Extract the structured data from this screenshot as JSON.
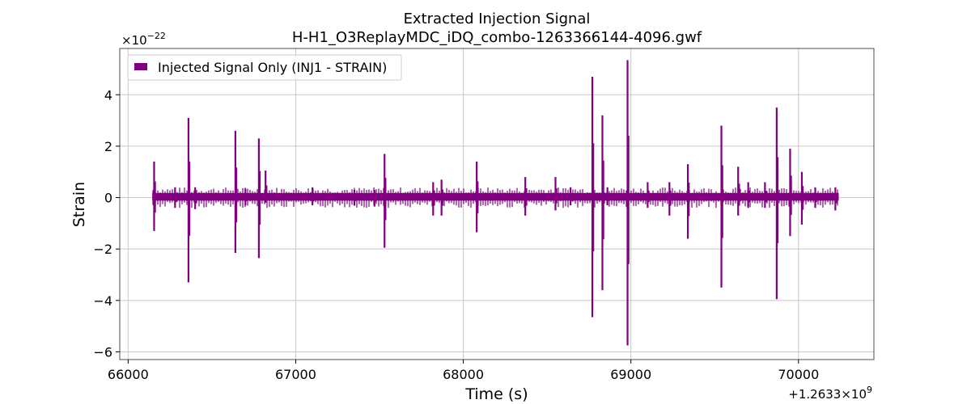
{
  "chart_data": {
    "type": "line",
    "title": "Extracted Injection Signal",
    "subtitle": "H-H1_O3ReplayMDC_iDQ_combo-1263366144-4096.gwf",
    "xlabel": "Time (s)",
    "ylabel": "Strain",
    "x_offset_label": "+1.2633×10",
    "x_offset_exponent": "9",
    "y_scale_label": "×10",
    "y_scale_exponent": "−22",
    "xlim": [
      65950,
      70450
    ],
    "ylim": [
      -6.3,
      5.8
    ],
    "x_ticks": [
      66000,
      67000,
      68000,
      69000,
      70000
    ],
    "x_tick_labels": [
      "66000",
      "67000",
      "68000",
      "69000",
      "70000"
    ],
    "y_ticks": [
      -6,
      -4,
      -2,
      0,
      2,
      4
    ],
    "y_tick_labels": [
      "−6",
      "−4",
      "−2",
      "0",
      "2",
      "4"
    ],
    "grid": true,
    "legend_position": "top-left",
    "series": [
      {
        "name": "Injected Signal Only (INJ1 - STRAIN)",
        "color": "#800080",
        "x_start": 66144,
        "x_end": 70240,
        "baseline_band": [
          -0.12,
          0.18
        ],
        "spikes": [
          {
            "x": 66155,
            "max": 1.4,
            "min": -1.3
          },
          {
            "x": 66280,
            "max": 0.4,
            "min": -0.4
          },
          {
            "x": 66360,
            "max": 3.1,
            "min": -3.3
          },
          {
            "x": 66400,
            "max": 0.4,
            "min": -0.45
          },
          {
            "x": 66640,
            "max": 2.6,
            "min": -2.15
          },
          {
            "x": 66700,
            "max": 0.35,
            "min": -0.3
          },
          {
            "x": 66780,
            "max": 2.3,
            "min": -2.35
          },
          {
            "x": 66820,
            "max": 1.05,
            "min": -0.2
          },
          {
            "x": 67100,
            "max": 0.4,
            "min": -0.3
          },
          {
            "x": 67350,
            "max": 0.3,
            "min": -0.3
          },
          {
            "x": 67470,
            "max": 0.3,
            "min": -0.35
          },
          {
            "x": 67530,
            "max": 1.7,
            "min": -1.95
          },
          {
            "x": 67820,
            "max": 0.6,
            "min": -0.7
          },
          {
            "x": 67870,
            "max": 0.7,
            "min": -0.7
          },
          {
            "x": 68080,
            "max": 1.4,
            "min": -1.35
          },
          {
            "x": 68370,
            "max": 0.8,
            "min": -0.7
          },
          {
            "x": 68550,
            "max": 0.8,
            "min": -0.5
          },
          {
            "x": 68640,
            "max": 0.4,
            "min": -0.3
          },
          {
            "x": 68770,
            "max": 4.7,
            "min": -4.65
          },
          {
            "x": 68830,
            "max": 3.2,
            "min": -3.6
          },
          {
            "x": 68860,
            "max": 0.4,
            "min": -0.3
          },
          {
            "x": 68980,
            "max": 5.35,
            "min": -5.75
          },
          {
            "x": 69100,
            "max": 0.6,
            "min": -0.4
          },
          {
            "x": 69230,
            "max": 0.6,
            "min": -0.7
          },
          {
            "x": 69340,
            "max": 1.3,
            "min": -1.6
          },
          {
            "x": 69540,
            "max": 2.8,
            "min": -3.5
          },
          {
            "x": 69640,
            "max": 1.2,
            "min": -0.7
          },
          {
            "x": 69700,
            "max": 0.6,
            "min": -0.4
          },
          {
            "x": 69800,
            "max": 0.6,
            "min": -0.4
          },
          {
            "x": 69870,
            "max": 3.5,
            "min": -3.95
          },
          {
            "x": 69950,
            "max": 1.9,
            "min": -1.5
          },
          {
            "x": 70020,
            "max": 1.0,
            "min": -1.05
          },
          {
            "x": 70100,
            "max": 0.4,
            "min": -0.4
          },
          {
            "x": 70220,
            "max": 0.4,
            "min": -0.5
          }
        ]
      }
    ]
  }
}
